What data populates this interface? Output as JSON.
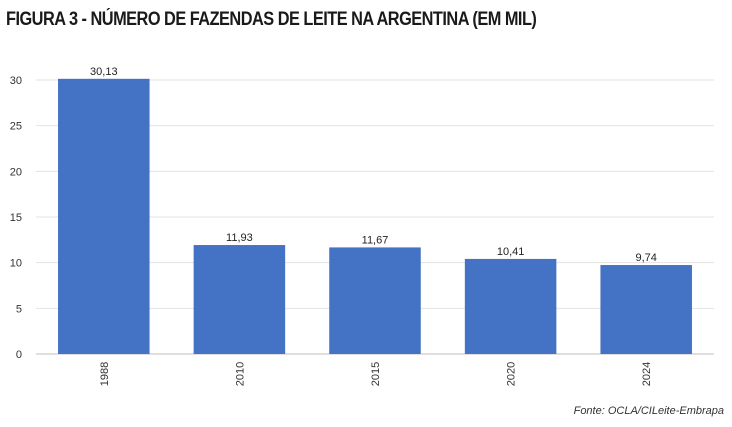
{
  "title": "FIGURA 3 - NÚMERO DE FAZENDAS DE LEITE NA ARGENTINA (EM MIL)",
  "source": "Fonte: OCLA/CILeite-Embrapa",
  "chart_data": {
    "type": "bar",
    "categories": [
      "1988",
      "2010",
      "2015",
      "2020",
      "2024"
    ],
    "values": [
      30.13,
      11.93,
      11.67,
      10.41,
      9.74
    ],
    "value_labels": [
      "30,13",
      "11,93",
      "11,67",
      "10,41",
      "9,74"
    ],
    "ylim": [
      0,
      30
    ],
    "yticks": [
      0,
      5,
      10,
      15,
      20,
      25,
      30
    ],
    "grid": true,
    "bar_color": "#4472c4",
    "x_tick_rotation": "vertical"
  }
}
